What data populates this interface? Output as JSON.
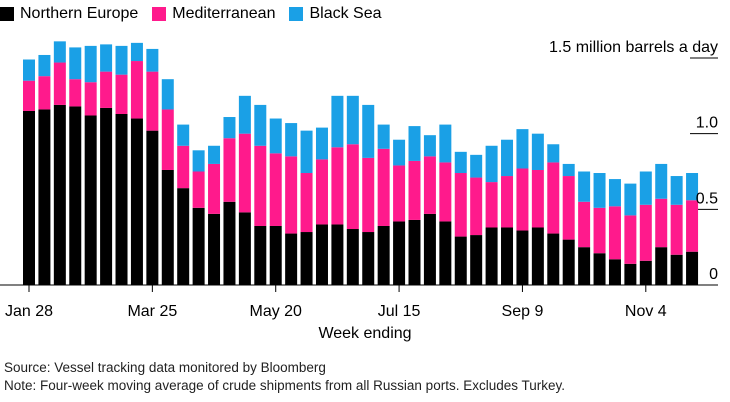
{
  "chart_data": {
    "type": "bar",
    "stacked": true,
    "unit_label": "1.5 million barrels a day",
    "xlabel": "Week ending",
    "x_tick_labels": [
      "Jan 28",
      "Mar 25",
      "May 20",
      "Jul 15",
      "Sep 9",
      "Nov 4"
    ],
    "y_tick_labels": [
      "0",
      "0.5",
      "1.0",
      "1.5"
    ],
    "ylim": [
      0,
      1.5
    ],
    "series": [
      {
        "name": "Northern Europe",
        "color": "#000000",
        "values": [
          1.15,
          1.16,
          1.19,
          1.18,
          1.12,
          1.17,
          1.13,
          1.1,
          1.02,
          0.76,
          0.64,
          0.51,
          0.47,
          0.55,
          0.48,
          0.39,
          0.39,
          0.34,
          0.35,
          0.4,
          0.4,
          0.37,
          0.35,
          0.39,
          0.42,
          0.43,
          0.47,
          0.42,
          0.32,
          0.33,
          0.38,
          0.38,
          0.36,
          0.38,
          0.34,
          0.3,
          0.25,
          0.21,
          0.17,
          0.14,
          0.16,
          0.25,
          0.2,
          0.22
        ]
      },
      {
        "name": "Mediterranean",
        "color": "#ff1a8c",
        "values": [
          0.2,
          0.22,
          0.28,
          0.18,
          0.22,
          0.24,
          0.26,
          0.38,
          0.39,
          0.4,
          0.28,
          0.24,
          0.33,
          0.42,
          0.52,
          0.53,
          0.48,
          0.51,
          0.39,
          0.43,
          0.51,
          0.56,
          0.49,
          0.51,
          0.37,
          0.39,
          0.38,
          0.39,
          0.42,
          0.38,
          0.3,
          0.34,
          0.41,
          0.38,
          0.47,
          0.42,
          0.3,
          0.3,
          0.35,
          0.32,
          0.37,
          0.32,
          0.33,
          0.34
        ]
      },
      {
        "name": "Black Sea",
        "color": "#1aa0e6",
        "values": [
          0.14,
          0.14,
          0.14,
          0.21,
          0.24,
          0.18,
          0.19,
          0.12,
          0.15,
          0.2,
          0.14,
          0.14,
          0.12,
          0.14,
          0.25,
          0.27,
          0.23,
          0.22,
          0.28,
          0.21,
          0.34,
          0.32,
          0.35,
          0.16,
          0.17,
          0.23,
          0.14,
          0.25,
          0.14,
          0.15,
          0.24,
          0.24,
          0.26,
          0.24,
          0.12,
          0.08,
          0.2,
          0.23,
          0.18,
          0.21,
          0.22,
          0.23,
          0.19,
          0.18
        ]
      }
    ]
  },
  "source": {
    "line1": "Source: Vessel tracking data monitored by Bloomberg",
    "line2": "Note: Four-week moving average of crude shipments from all Russian ports. Excludes Turkey."
  }
}
